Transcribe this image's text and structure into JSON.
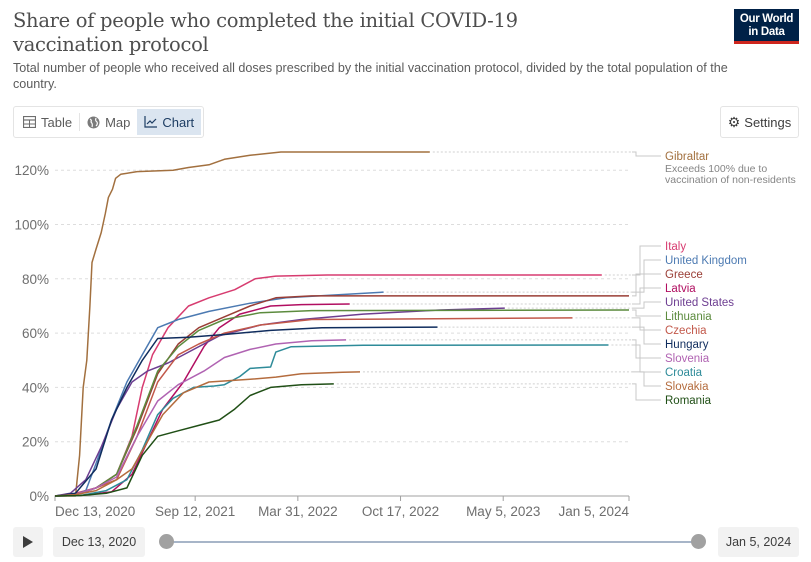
{
  "header": {
    "title": "Share of people who completed the initial COVID-19 vaccination protocol",
    "subtitle": "Total number of people who received all doses prescribed by the initial vaccination protocol, divided by the total population of the country.",
    "logo_line1": "Our World",
    "logo_line2": "in Data"
  },
  "tabs": [
    {
      "label": "Table",
      "icon": "table-icon",
      "active": false
    },
    {
      "label": "Map",
      "icon": "globe-icon",
      "active": false
    },
    {
      "label": "Chart",
      "icon": "line-chart-icon",
      "active": true
    }
  ],
  "settings_label": "Settings",
  "timeline": {
    "play_icon": "play-icon",
    "start_label": "Dec 13, 2020",
    "end_label": "Jan 5, 2024",
    "start_fraction": 0,
    "end_fraction": 1
  },
  "chart_data": {
    "type": "line",
    "title": "Share of people who completed the initial COVID-19 vaccination protocol",
    "xlabel": "",
    "ylabel": "",
    "x_unit": "days since Dec 13, 2020",
    "xlim": [
      0,
      1118
    ],
    "ylim": [
      0,
      130
    ],
    "y_ticks": [
      0,
      20,
      40,
      60,
      80,
      100,
      120
    ],
    "y_tick_labels": [
      "0%",
      "20%",
      "40%",
      "60%",
      "80%",
      "100%",
      "120%"
    ],
    "x_ticks": [
      0,
      273,
      473,
      673,
      873,
      1118
    ],
    "x_tick_labels": [
      "Dec 13, 2020",
      "Sep 12, 2021",
      "Mar 31, 2022",
      "Oct 17, 2022",
      "May 5, 2023",
      "Jan 5, 2024"
    ],
    "grid": "horizontal-dashed",
    "legend": "right",
    "series": [
      {
        "name": "Gibraltar",
        "color": "#a2703f",
        "note": "Exceeds 100% due to vaccination of non-residents",
        "points": [
          [
            0,
            0
          ],
          [
            40,
            0
          ],
          [
            48,
            15
          ],
          [
            55,
            40
          ],
          [
            62,
            50
          ],
          [
            68,
            70
          ],
          [
            72,
            86
          ],
          [
            80,
            91
          ],
          [
            90,
            97
          ],
          [
            98,
            104
          ],
          [
            104,
            110
          ],
          [
            112,
            113
          ],
          [
            118,
            117
          ],
          [
            128,
            118.5
          ],
          [
            160,
            119.5
          ],
          [
            230,
            120
          ],
          [
            260,
            121
          ],
          [
            300,
            122
          ],
          [
            330,
            124
          ],
          [
            380,
            125.5
          ],
          [
            440,
            126.7
          ],
          [
            730,
            126.7
          ]
        ]
      },
      {
        "name": "Italy",
        "color": "#d73c70",
        "points": [
          [
            0,
            0
          ],
          [
            30,
            0.5
          ],
          [
            80,
            3
          ],
          [
            120,
            8
          ],
          [
            150,
            22
          ],
          [
            170,
            40
          ],
          [
            190,
            52
          ],
          [
            220,
            62
          ],
          [
            260,
            70
          ],
          [
            300,
            73
          ],
          [
            350,
            76
          ],
          [
            390,
            80
          ],
          [
            430,
            81
          ],
          [
            530,
            81.4
          ],
          [
            1065,
            81.4
          ]
        ]
      },
      {
        "name": "United Kingdom",
        "color": "#4c7ab2",
        "points": [
          [
            0,
            0
          ],
          [
            40,
            0.5
          ],
          [
            60,
            2
          ],
          [
            80,
            12
          ],
          [
            110,
            28
          ],
          [
            140,
            42
          ],
          [
            170,
            52
          ],
          [
            200,
            62
          ],
          [
            240,
            65
          ],
          [
            300,
            68
          ],
          [
            380,
            71
          ],
          [
            450,
            73
          ],
          [
            640,
            75.1
          ]
        ]
      },
      {
        "name": "Greece",
        "color": "#9a3e36",
        "points": [
          [
            0,
            0
          ],
          [
            40,
            0.3
          ],
          [
            80,
            3
          ],
          [
            120,
            8
          ],
          [
            160,
            25
          ],
          [
            200,
            45
          ],
          [
            240,
            56
          ],
          [
            280,
            62
          ],
          [
            330,
            66
          ],
          [
            380,
            70
          ],
          [
            430,
            73
          ],
          [
            500,
            73.7
          ],
          [
            1118,
            73.7
          ]
        ]
      },
      {
        "name": "Latvia",
        "color": "#b10e61",
        "points": [
          [
            0,
            0
          ],
          [
            50,
            0.2
          ],
          [
            110,
            1.5
          ],
          [
            150,
            8
          ],
          [
            180,
            20
          ],
          [
            210,
            32
          ],
          [
            250,
            42
          ],
          [
            290,
            55
          ],
          [
            320,
            62
          ],
          [
            360,
            67
          ],
          [
            420,
            70
          ],
          [
            480,
            70.5
          ],
          [
            574,
            70.7
          ]
        ]
      },
      {
        "name": "United States",
        "color": "#6d3e91",
        "points": [
          [
            0,
            0
          ],
          [
            30,
            1
          ],
          [
            60,
            6
          ],
          [
            90,
            18
          ],
          [
            120,
            32
          ],
          [
            150,
            42
          ],
          [
            180,
            46
          ],
          [
            220,
            49
          ],
          [
            260,
            53
          ],
          [
            320,
            59
          ],
          [
            400,
            63
          ],
          [
            480,
            65
          ],
          [
            600,
            67
          ],
          [
            750,
            68.5
          ],
          [
            876,
            69.2
          ]
        ]
      },
      {
        "name": "Lithuania",
        "color": "#5c8b3e",
        "points": [
          [
            0,
            0
          ],
          [
            40,
            0.5
          ],
          [
            80,
            3
          ],
          [
            120,
            8
          ],
          [
            160,
            26
          ],
          [
            200,
            46
          ],
          [
            240,
            55
          ],
          [
            280,
            61
          ],
          [
            330,
            65
          ],
          [
            400,
            67.5
          ],
          [
            500,
            68.3
          ],
          [
            1118,
            68.5
          ]
        ]
      },
      {
        "name": "Czechia",
        "color": "#c2584a",
        "points": [
          [
            0,
            0
          ],
          [
            40,
            0.5
          ],
          [
            80,
            3
          ],
          [
            120,
            6
          ],
          [
            160,
            22
          ],
          [
            200,
            42
          ],
          [
            240,
            52
          ],
          [
            280,
            56
          ],
          [
            330,
            60
          ],
          [
            400,
            63
          ],
          [
            500,
            65
          ],
          [
            1008,
            65.6
          ]
        ]
      },
      {
        "name": "Hungary",
        "color": "#102d5e",
        "points": [
          [
            0,
            0
          ],
          [
            40,
            1
          ],
          [
            80,
            10
          ],
          [
            110,
            28
          ],
          [
            140,
            40
          ],
          [
            170,
            50
          ],
          [
            200,
            58
          ],
          [
            260,
            58.5
          ],
          [
            330,
            59.5
          ],
          [
            420,
            61
          ],
          [
            520,
            62
          ],
          [
            745,
            62.2
          ]
        ]
      },
      {
        "name": "Slovenia",
        "color": "#b063b2",
        "points": [
          [
            0,
            0
          ],
          [
            40,
            0.5
          ],
          [
            80,
            3
          ],
          [
            120,
            7
          ],
          [
            160,
            22
          ],
          [
            200,
            35
          ],
          [
            240,
            41
          ],
          [
            290,
            46
          ],
          [
            330,
            51
          ],
          [
            380,
            54
          ],
          [
            430,
            56
          ],
          [
            500,
            57.2
          ],
          [
            567,
            57.5
          ]
        ]
      },
      {
        "name": "Croatia",
        "color": "#2e8b99",
        "points": [
          [
            0,
            0
          ],
          [
            50,
            0.2
          ],
          [
            100,
            2
          ],
          [
            140,
            6
          ],
          [
            170,
            17
          ],
          [
            200,
            30
          ],
          [
            230,
            36
          ],
          [
            270,
            40
          ],
          [
            310,
            40.5
          ],
          [
            330,
            41
          ],
          [
            360,
            44
          ],
          [
            380,
            47
          ],
          [
            420,
            47.5
          ],
          [
            430,
            53
          ],
          [
            460,
            55
          ],
          [
            600,
            55.5
          ],
          [
            1078,
            55.6
          ]
        ]
      },
      {
        "name": "Slovakia",
        "color": "#b46c3e",
        "points": [
          [
            0,
            0
          ],
          [
            40,
            0.5
          ],
          [
            80,
            2
          ],
          [
            120,
            6
          ],
          [
            150,
            10
          ],
          [
            180,
            20
          ],
          [
            210,
            30
          ],
          [
            250,
            38
          ],
          [
            300,
            42
          ],
          [
            380,
            43
          ],
          [
            430,
            43.8
          ],
          [
            480,
            45
          ],
          [
            560,
            45.6
          ],
          [
            594,
            45.7
          ]
        ]
      },
      {
        "name": "Romania",
        "color": "#204f16",
        "points": [
          [
            0,
            0
          ],
          [
            50,
            0.2
          ],
          [
            100,
            1
          ],
          [
            140,
            3
          ],
          [
            170,
            15
          ],
          [
            200,
            22
          ],
          [
            240,
            24
          ],
          [
            280,
            26
          ],
          [
            320,
            28
          ],
          [
            350,
            32
          ],
          [
            380,
            37
          ],
          [
            420,
            40
          ],
          [
            480,
            41
          ],
          [
            543,
            41.3
          ]
        ]
      }
    ]
  }
}
